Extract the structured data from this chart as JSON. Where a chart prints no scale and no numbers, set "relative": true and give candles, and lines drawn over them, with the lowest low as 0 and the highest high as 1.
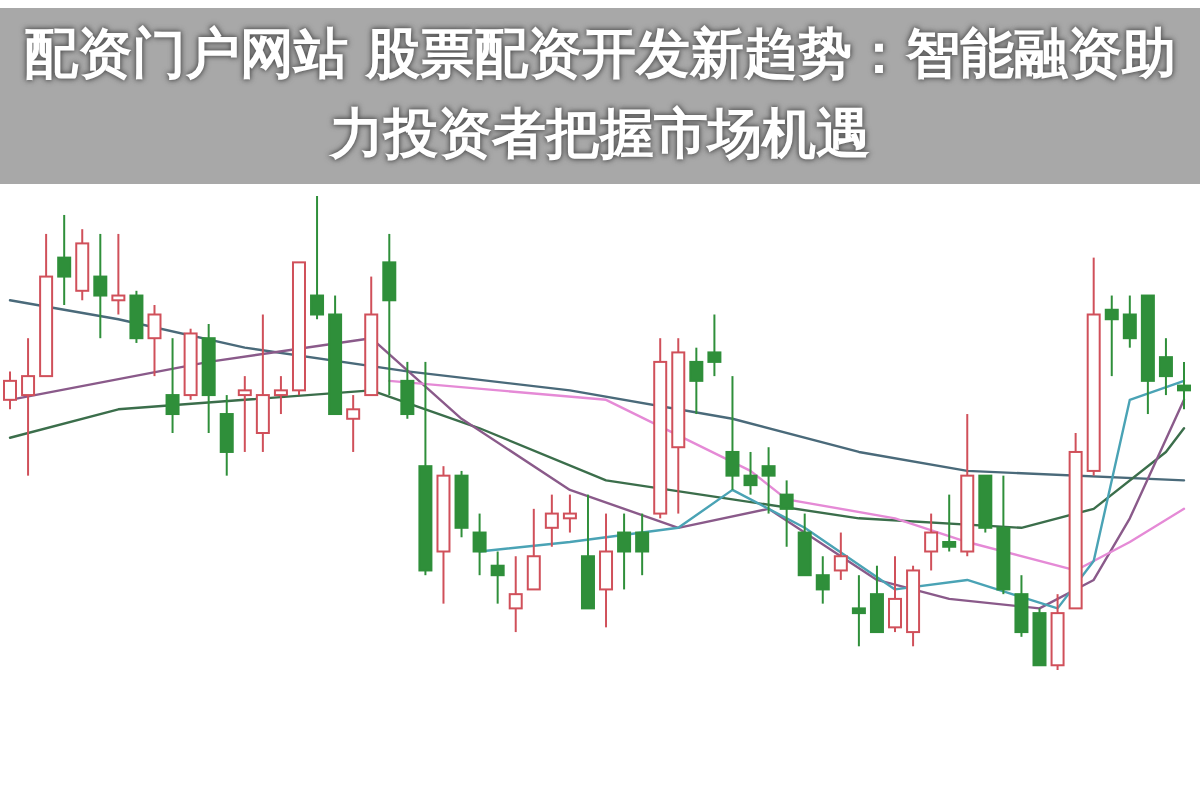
{
  "chart_data": {
    "type": "candlestick",
    "title": "配资门户网站 股票配资开发新趋势：智能融资助力投资者把握市场机遇",
    "relative": true,
    "categories": [
      null,
      null,
      null,
      null,
      null,
      null,
      null,
      null,
      null,
      null,
      null,
      null,
      null,
      null,
      null,
      null,
      null,
      null,
      null,
      null,
      null,
      null,
      null,
      null,
      null,
      null,
      null,
      null,
      null,
      null,
      null,
      null,
      null,
      null,
      null,
      null,
      null,
      null,
      null,
      null,
      null,
      null,
      null,
      null,
      null,
      null,
      null,
      null,
      null,
      null,
      null,
      null,
      null,
      null,
      null,
      null,
      null,
      null,
      null,
      null,
      null,
      null,
      null,
      null,
      null,
      null
    ],
    "ohlc": [
      [
        0.57,
        0.63,
        0.55,
        0.61
      ],
      [
        0.58,
        0.7,
        0.41,
        0.62
      ],
      [
        0.62,
        0.92,
        0.62,
        0.83
      ],
      [
        0.87,
        0.96,
        0.77,
        0.83
      ],
      [
        0.8,
        0.93,
        0.78,
        0.9
      ],
      [
        0.83,
        0.92,
        0.7,
        0.79
      ],
      [
        0.78,
        0.92,
        0.75,
        0.79
      ],
      [
        0.79,
        0.8,
        0.69,
        0.7
      ],
      [
        0.7,
        0.77,
        0.62,
        0.75
      ],
      [
        0.58,
        0.7,
        0.5,
        0.54
      ],
      [
        0.58,
        0.72,
        0.57,
        0.71
      ],
      [
        0.7,
        0.73,
        0.5,
        0.58
      ],
      [
        0.54,
        0.58,
        0.41,
        0.46
      ],
      [
        0.58,
        0.62,
        0.46,
        0.59
      ],
      [
        0.5,
        0.75,
        0.46,
        0.58
      ],
      [
        0.58,
        0.62,
        0.54,
        0.59
      ],
      [
        0.59,
        0.86,
        0.58,
        0.86
      ],
      [
        0.79,
        1.0,
        0.74,
        0.75
      ],
      [
        0.75,
        0.79,
        0.54,
        0.54
      ],
      [
        0.53,
        0.58,
        0.46,
        0.55
      ],
      [
        0.58,
        0.83,
        0.58,
        0.75
      ],
      [
        0.86,
        0.92,
        0.58,
        0.78
      ],
      [
        0.61,
        0.65,
        0.53,
        0.54
      ],
      [
        0.43,
        0.65,
        0.2,
        0.21
      ],
      [
        0.25,
        0.43,
        0.14,
        0.41
      ],
      [
        0.41,
        0.42,
        0.28,
        0.3
      ],
      [
        0.29,
        0.33,
        0.2,
        0.25
      ],
      [
        0.22,
        0.25,
        0.14,
        0.2
      ],
      [
        0.13,
        0.24,
        0.08,
        0.16
      ],
      [
        0.17,
        0.34,
        0.17,
        0.24
      ],
      [
        0.3,
        0.37,
        0.26,
        0.33
      ],
      [
        0.32,
        0.37,
        0.29,
        0.33
      ],
      [
        0.24,
        0.37,
        0.13,
        0.13
      ],
      [
        0.17,
        0.33,
        0.09,
        0.25
      ],
      [
        0.29,
        0.33,
        0.17,
        0.25
      ],
      [
        0.29,
        0.33,
        0.2,
        0.25
      ],
      [
        0.33,
        0.7,
        0.32,
        0.65
      ],
      [
        0.47,
        0.7,
        0.33,
        0.67
      ],
      [
        0.65,
        0.68,
        0.54,
        0.61
      ],
      [
        0.67,
        0.75,
        0.62,
        0.65
      ],
      [
        0.46,
        0.62,
        0.38,
        0.41
      ],
      [
        0.41,
        0.46,
        0.37,
        0.39
      ],
      [
        0.43,
        0.47,
        0.33,
        0.41
      ],
      [
        0.37,
        0.4,
        0.26,
        0.34
      ],
      [
        0.29,
        0.33,
        0.2,
        0.2
      ],
      [
        0.2,
        0.24,
        0.14,
        0.17
      ],
      [
        0.21,
        0.29,
        0.19,
        0.24
      ],
      [
        0.13,
        0.2,
        0.05,
        0.12
      ],
      [
        0.16,
        0.22,
        0.08,
        0.08
      ],
      [
        0.09,
        0.24,
        0.08,
        0.15
      ],
      [
        0.08,
        0.22,
        0.05,
        0.21
      ],
      [
        0.25,
        0.33,
        0.21,
        0.29
      ],
      [
        0.27,
        0.37,
        0.25,
        0.26
      ],
      [
        0.25,
        0.54,
        0.24,
        0.41
      ],
      [
        0.41,
        0.41,
        0.29,
        0.3
      ],
      [
        0.3,
        0.41,
        0.16,
        0.17
      ],
      [
        0.16,
        0.2,
        0.07,
        0.08
      ],
      [
        0.12,
        0.13,
        0.01,
        0.01
      ],
      [
        0.01,
        0.16,
        0.0,
        0.12
      ],
      [
        0.13,
        0.5,
        0.13,
        0.46
      ],
      [
        0.42,
        0.87,
        0.41,
        0.75
      ],
      [
        0.76,
        0.79,
        0.62,
        0.74
      ],
      [
        0.75,
        0.79,
        0.68,
        0.7
      ],
      [
        0.79,
        0.79,
        0.54,
        0.61
      ],
      [
        0.66,
        0.7,
        0.58,
        0.62
      ],
      [
        0.6,
        0.65,
        0.55,
        0.59
      ]
    ],
    "series": [
      {
        "type": "line",
        "color": "#4a6a7a",
        "values": [
          0.78,
          null,
          null,
          null,
          null,
          null,
          0.74,
          null,
          null,
          null,
          null,
          null,
          null,
          0.68,
          null,
          null,
          null,
          null,
          null,
          null,
          null,
          null,
          0.63,
          null,
          null,
          null,
          null,
          null,
          null,
          null,
          null,
          0.59,
          null,
          null,
          null,
          null,
          null,
          null,
          null,
          null,
          0.53,
          null,
          null,
          null,
          null,
          null,
          null,
          0.46,
          null,
          null,
          null,
          null,
          null,
          0.42,
          null,
          null,
          null,
          null,
          null,
          null,
          null,
          null,
          null,
          null,
          null,
          0.4
        ]
      },
      {
        "type": "line",
        "color": "#3b6e4b",
        "values": [
          0.49,
          null,
          null,
          null,
          null,
          null,
          0.55,
          null,
          null,
          null,
          null,
          null,
          null,
          0.57,
          null,
          null,
          null,
          null,
          null,
          null,
          0.59,
          null,
          null,
          null,
          null,
          null,
          0.51,
          null,
          null,
          null,
          null,
          null,
          null,
          0.4,
          null,
          null,
          null,
          null,
          null,
          null,
          0.36,
          null,
          null,
          null,
          null,
          null,
          null,
          0.32,
          null,
          null,
          null,
          null,
          null,
          null,
          null,
          null,
          0.3,
          null,
          null,
          null,
          0.34,
          null,
          null,
          null,
          0.46,
          0.51
        ]
      },
      {
        "type": "line",
        "color": "#8a5a8a",
        "values": [
          0.57,
          null,
          null,
          null,
          null,
          null,
          null,
          null,
          null,
          null,
          null,
          0.65,
          null,
          null,
          null,
          null,
          null,
          null,
          null,
          null,
          0.7,
          null,
          null,
          null,
          null,
          0.53,
          null,
          null,
          null,
          null,
          null,
          0.38,
          null,
          null,
          null,
          null,
          null,
          0.3,
          null,
          null,
          null,
          null,
          0.34,
          null,
          null,
          null,
          null,
          null,
          0.19,
          null,
          null,
          null,
          0.15,
          null,
          null,
          null,
          null,
          0.13,
          null,
          null,
          0.19,
          null,
          0.32,
          null,
          null,
          0.57
        ]
      },
      {
        "type": "line",
        "color": "#e58ad6",
        "values": [
          null,
          null,
          null,
          null,
          null,
          null,
          null,
          null,
          null,
          null,
          null,
          null,
          null,
          null,
          null,
          null,
          null,
          null,
          null,
          null,
          null,
          0.61,
          null,
          null,
          null,
          null,
          null,
          null,
          null,
          null,
          null,
          null,
          null,
          0.57,
          null,
          null,
          null,
          null,
          null,
          null,
          null,
          0.42,
          null,
          0.36,
          null,
          null,
          null,
          null,
          null,
          0.32,
          null,
          null,
          null,
          0.27,
          null,
          null,
          null,
          null,
          null,
          0.21,
          null,
          null,
          0.27,
          null,
          null,
          0.34
        ]
      },
      {
        "type": "line",
        "color": "#4aa3b5",
        "values": [
          null,
          null,
          null,
          null,
          null,
          null,
          null,
          null,
          null,
          null,
          null,
          null,
          null,
          null,
          null,
          null,
          null,
          null,
          null,
          null,
          null,
          null,
          null,
          null,
          null,
          null,
          0.25,
          null,
          null,
          null,
          null,
          0.27,
          null,
          null,
          null,
          null,
          null,
          0.3,
          null,
          null,
          0.38,
          null,
          null,
          null,
          0.3,
          null,
          null,
          null,
          null,
          0.17,
          null,
          null,
          null,
          0.19,
          null,
          null,
          null,
          null,
          0.13,
          null,
          0.23,
          null,
          0.57,
          null,
          null,
          0.61
        ]
      }
    ]
  }
}
